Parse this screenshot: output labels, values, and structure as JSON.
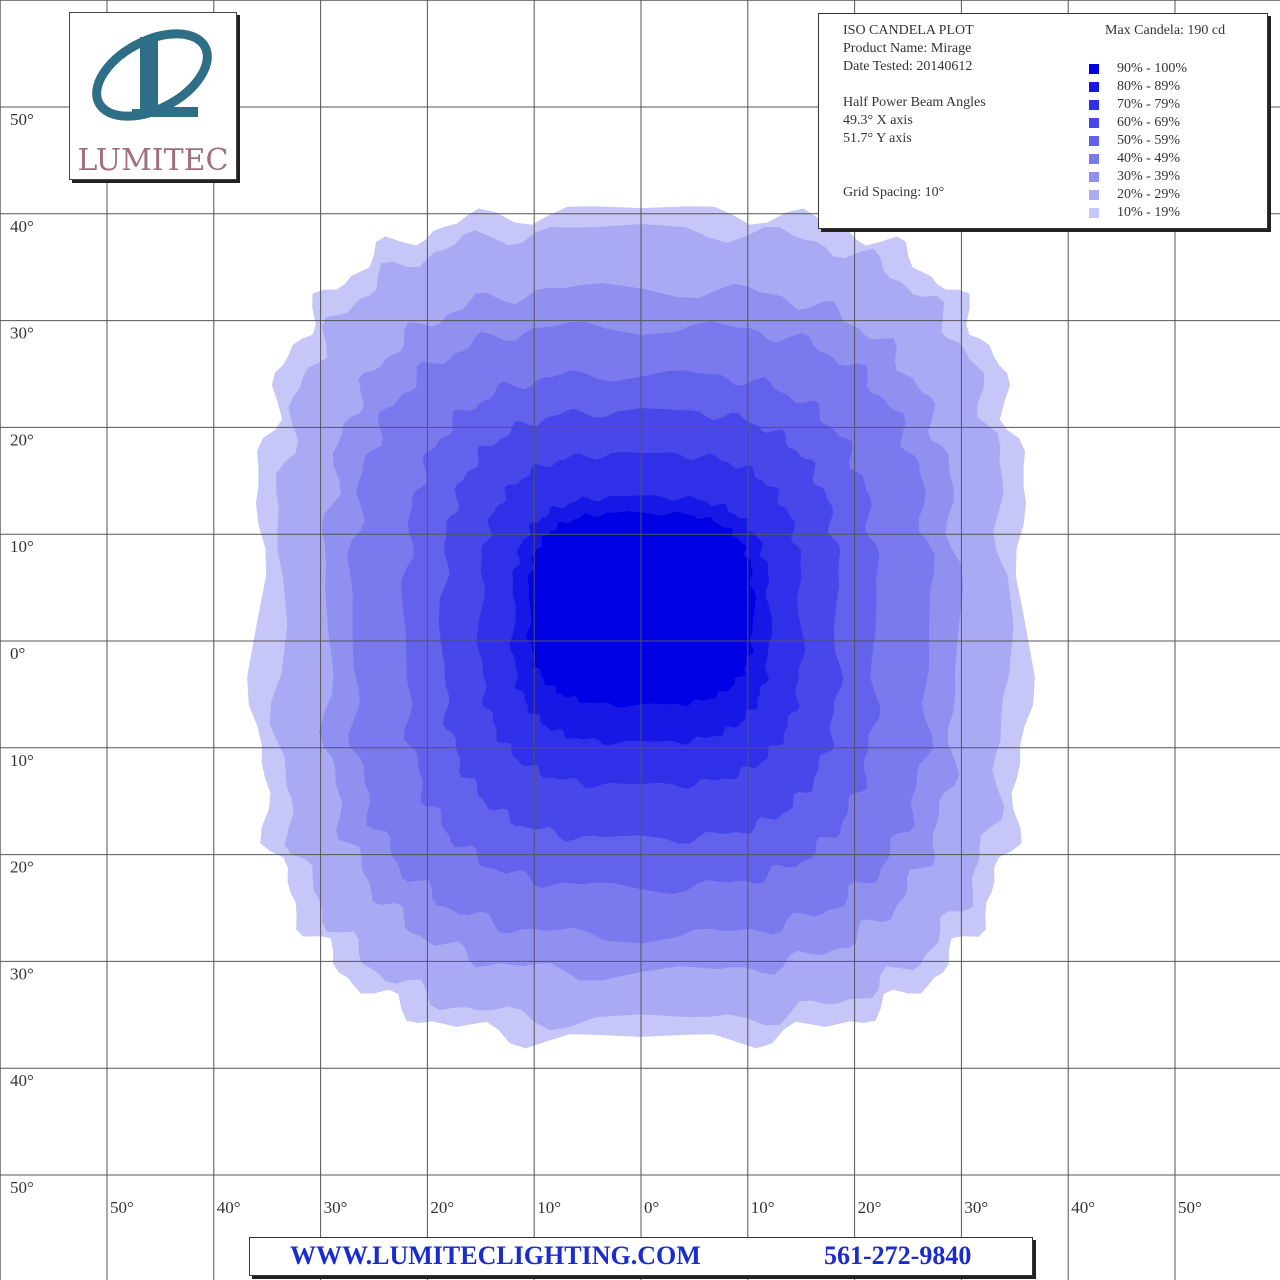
{
  "chart_data": {
    "type": "heatmap",
    "title": "ISO CANDELA PLOT",
    "product_name": "Product Name: Mirage",
    "date_tested": "Date Tested: 20140612",
    "max_candela": "Max Candela: 190 cd",
    "half_power_heading": "Half Power Beam Angles",
    "x_axis_angle": "49.3° X axis",
    "y_axis_angle": "51.7° Y axis",
    "grid_spacing": "Grid Spacing: 10°",
    "x_tick_labels": [
      "50°",
      "40°",
      "30°",
      "20°",
      "10°",
      "0°",
      "10°",
      "20°",
      "30°",
      "40°",
      "50°"
    ],
    "y_tick_labels": [
      "50°",
      "40°",
      "30°",
      "20°",
      "10°",
      "0°",
      "10°",
      "20°",
      "30°",
      "40°",
      "50°"
    ],
    "x_range_deg": [
      -55,
      55
    ],
    "y_range_deg": [
      -55,
      55
    ],
    "grid": true,
    "legend_position": "top-right",
    "bands": [
      {
        "label": "10% - 19%",
        "color": "#c6c6f8",
        "half_width_deg": 36.0,
        "half_height_deg": 38.8,
        "center_y_deg": 1.5
      },
      {
        "label": "20% - 29%",
        "color": "#aaaaf4",
        "half_width_deg": 34.0,
        "half_height_deg": 37.0,
        "center_y_deg": 1.5
      },
      {
        "label": "30% - 39%",
        "color": "#9090f0",
        "half_width_deg": 29.5,
        "half_height_deg": 32.0,
        "center_y_deg": 1.0
      },
      {
        "label": "40% - 49%",
        "color": "#7a7aee",
        "half_width_deg": 27.0,
        "half_height_deg": 28.5,
        "center_y_deg": 1.0
      },
      {
        "label": "50% - 59%",
        "color": "#6262ec",
        "half_width_deg": 22.0,
        "half_height_deg": 24.0,
        "center_y_deg": 1.0
      },
      {
        "label": "60% - 69%",
        "color": "#4848ea",
        "half_width_deg": 18.5,
        "half_height_deg": 20.0,
        "center_y_deg": 1.5
      },
      {
        "label": "70% - 79%",
        "color": "#3030e8",
        "half_width_deg": 15.0,
        "half_height_deg": 15.5,
        "center_y_deg": 2.0
      },
      {
        "label": "80% - 89%",
        "color": "#1818e6",
        "half_width_deg": 12.0,
        "half_height_deg": 11.5,
        "center_y_deg": 2.0
      },
      {
        "label": "90% - 100%",
        "color": "#0000e4",
        "half_width_deg": 10.5,
        "half_height_deg": 9.0,
        "center_y_deg": 3.0
      }
    ]
  },
  "legend_order": [
    "90% - 100%",
    "80% - 89%",
    "70% - 79%",
    "60% - 69%",
    "50% - 59%",
    "40% - 49%",
    "30% - 39%",
    "20% - 29%",
    "10% - 19%"
  ],
  "legend_colors": [
    "#0000e4",
    "#1818e6",
    "#3030e8",
    "#4848ea",
    "#6262ec",
    "#7a7aee",
    "#9090f0",
    "#aaaaf4",
    "#c6c6f8"
  ],
  "logo": {
    "word": "LUMITEC",
    "icon": "lumitec-L-swirl-logo"
  },
  "footer": {
    "website": "WWW.LUMITECLIGHTING.COM",
    "phone": "561-272-9840"
  },
  "colors": {
    "grid_line": "#555555",
    "logo_teal": "#2e6e86",
    "logo_text": "#a0707a",
    "footer_text": "#1a2bd0"
  }
}
